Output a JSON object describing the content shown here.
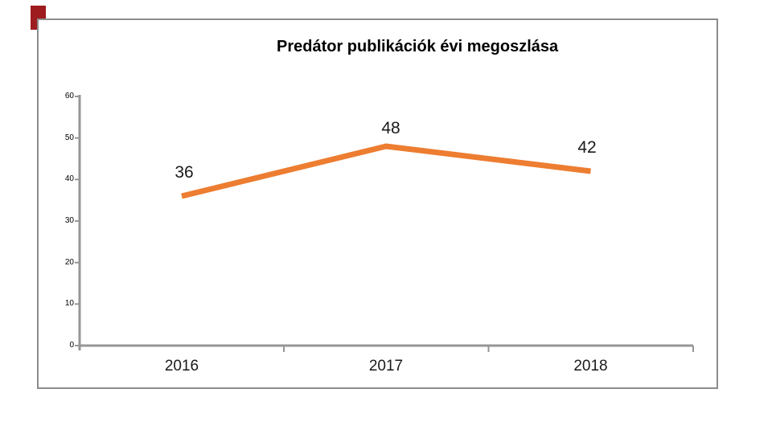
{
  "page": {
    "background": "#FFFFFF",
    "accent_bar_color": "#9E1B1E"
  },
  "chart_data": {
    "type": "line",
    "title": "Predátor publikációk évi megoszlása",
    "categories": [
      "2016",
      "2017",
      "2018"
    ],
    "values": [
      36,
      48,
      42
    ],
    "xlabel": "",
    "ylabel": "",
    "ylim": [
      0,
      60
    ],
    "yticks": [
      0,
      10,
      20,
      30,
      40,
      50,
      60
    ],
    "line_color": "#ED7D31",
    "axis_color": "#969696",
    "text_color": "#1a1a1a",
    "grid": false,
    "legend": "none",
    "data_labels_shown": true
  }
}
